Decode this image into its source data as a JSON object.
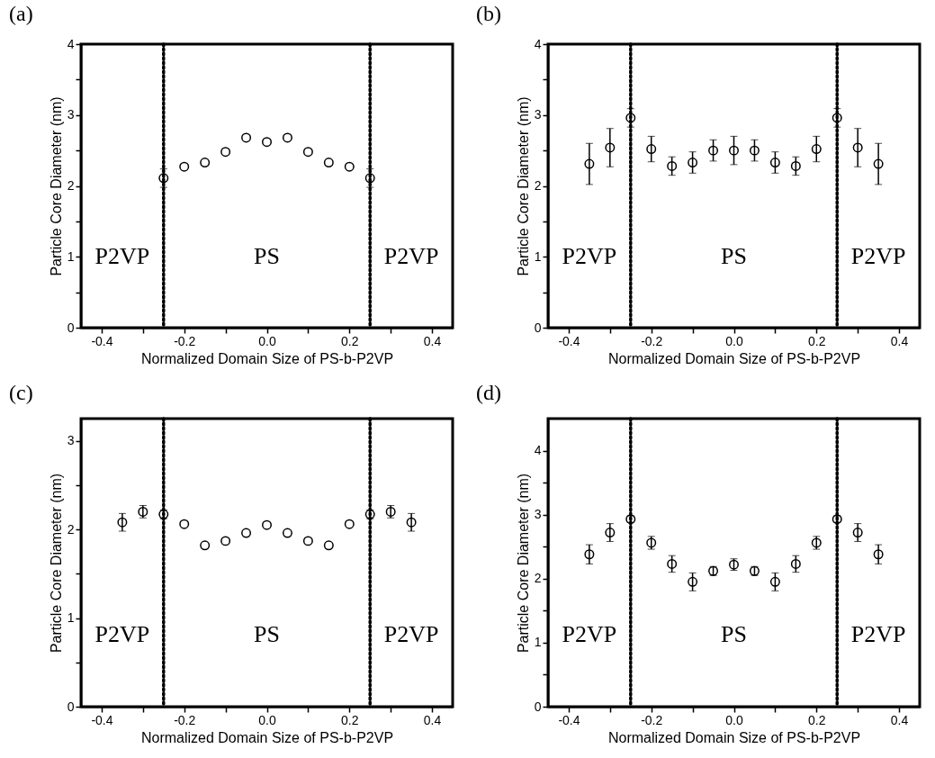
{
  "chart_data": [
    {
      "type": "scatter",
      "title": "(a)",
      "xlabel": "Normalized Domain Size of PS-b-P2VP",
      "ylabel": "Particle Core Diameter (nm)",
      "marker": "circle",
      "grid": false,
      "x": [
        -0.25,
        -0.2,
        -0.15,
        -0.1,
        -0.05,
        0,
        0.05,
        0.1,
        0.15,
        0.2,
        0.25
      ],
      "series": [
        {
          "color": "#000000",
          "values": [
            2.11,
            2.27,
            2.33,
            2.48,
            2.68,
            2.62,
            2.68,
            2.48,
            2.33,
            2.27,
            2.11
          ],
          "errors": [
            0.13,
            null,
            null,
            null,
            null,
            null,
            null,
            null,
            null,
            null,
            0.13
          ]
        }
      ],
      "xlim": [
        -0.45,
        0.45
      ],
      "xticks": [
        -0.4,
        {
          "value": -0.3,
          "label": null
        },
        -0.2,
        {
          "value": -0.1,
          "label": null
        },
        {
          "value": 0,
          "label": "0.0"
        },
        {
          "value": 0.1,
          "label": null
        },
        0.2,
        {
          "value": 0.3,
          "label": null
        },
        0.4
      ],
      "ylim": [
        0,
        4
      ],
      "yticks": [
        0,
        {
          "value": 0.5,
          "label": null
        },
        1,
        {
          "value": 1.5,
          "label": null
        },
        2,
        {
          "value": 2.5,
          "label": null
        },
        3,
        {
          "value": 3.5,
          "label": null
        },
        4
      ],
      "ref_lines": [
        {
          "axis": "x",
          "value": -0.25,
          "line_style": "dotted"
        },
        {
          "axis": "x",
          "value": 0.25,
          "line_style": "dotted"
        }
      ],
      "annotations": [
        "P2VP",
        "PS",
        "P2VP"
      ]
    },
    {
      "type": "scatter",
      "title": "(b)",
      "xlabel": "Normalized Domain Size of PS-b-P2VP",
      "ylabel": "Particle Core Diameter (nm)",
      "marker": "circle",
      "grid": false,
      "x": [
        -0.35,
        -0.3,
        -0.25,
        -0.2,
        -0.15,
        -0.1,
        -0.05,
        0,
        0.05,
        0.1,
        0.15,
        0.2,
        0.25,
        0.3,
        0.35
      ],
      "series": [
        {
          "color": "#000000",
          "values": [
            2.31,
            2.54,
            2.96,
            2.52,
            2.28,
            2.33,
            2.5,
            2.5,
            2.5,
            2.33,
            2.28,
            2.52,
            2.96,
            2.54,
            2.31
          ],
          "errors": [
            0.29,
            0.27,
            0.13,
            0.18,
            0.13,
            0.15,
            0.15,
            0.2,
            0.15,
            0.15,
            0.13,
            0.18,
            0.13,
            0.27,
            0.29
          ]
        }
      ],
      "xlim": [
        -0.45,
        0.45
      ],
      "xticks": [
        -0.4,
        {
          "value": -0.3,
          "label": null
        },
        -0.2,
        {
          "value": -0.1,
          "label": null
        },
        {
          "value": 0,
          "label": "0.0"
        },
        {
          "value": 0.1,
          "label": null
        },
        0.2,
        {
          "value": 0.3,
          "label": null
        },
        0.4
      ],
      "ylim": [
        0,
        4
      ],
      "yticks": [
        0,
        {
          "value": 0.5,
          "label": null
        },
        1,
        {
          "value": 1.5,
          "label": null
        },
        2,
        {
          "value": 2.5,
          "label": null
        },
        3,
        {
          "value": 3.5,
          "label": null
        },
        4
      ],
      "ref_lines": [
        {
          "axis": "x",
          "value": -0.25,
          "line_style": "dotted"
        },
        {
          "axis": "x",
          "value": 0.25,
          "line_style": "dotted"
        }
      ],
      "annotations": [
        "P2VP",
        "PS",
        "P2VP"
      ]
    },
    {
      "type": "scatter",
      "title": "(c)",
      "xlabel": "Normalized Domain Size of PS-b-P2VP",
      "ylabel": "Particle Core Diameter (nm)",
      "marker": "circle",
      "grid": false,
      "x": [
        -0.35,
        -0.3,
        -0.25,
        -0.2,
        -0.15,
        -0.1,
        -0.05,
        0,
        0.05,
        0.1,
        0.15,
        0.2,
        0.25,
        0.3,
        0.35
      ],
      "series": [
        {
          "color": "#000000",
          "values": [
            2.08,
            2.2,
            2.17,
            2.06,
            1.82,
            1.87,
            1.96,
            2.05,
            1.96,
            1.87,
            1.82,
            2.06,
            2.17,
            2.2,
            2.08
          ],
          "errors": [
            0.1,
            0.07,
            0.05,
            null,
            null,
            null,
            null,
            null,
            null,
            null,
            null,
            null,
            0.05,
            0.07,
            0.1
          ]
        }
      ],
      "xlim": [
        -0.45,
        0.45
      ],
      "xticks": [
        -0.4,
        {
          "value": -0.3,
          "label": null
        },
        -0.2,
        {
          "value": -0.1,
          "label": null
        },
        {
          "value": 0,
          "label": "0.0"
        },
        {
          "value": 0.1,
          "label": null
        },
        0.2,
        {
          "value": 0.3,
          "label": null
        },
        0.4
      ],
      "ylim": [
        0,
        3.25
      ],
      "yticks": [
        0,
        {
          "value": 0.5,
          "label": null
        },
        1,
        {
          "value": 1.5,
          "label": null
        },
        2,
        {
          "value": 2.5,
          "label": null
        },
        3
      ],
      "ref_lines": [
        {
          "axis": "x",
          "value": -0.25,
          "line_style": "dotted"
        },
        {
          "axis": "x",
          "value": 0.25,
          "line_style": "dotted"
        }
      ],
      "annotations": [
        "P2VP",
        "PS",
        "P2VP"
      ]
    },
    {
      "type": "scatter",
      "title": "(d)",
      "xlabel": "Normalized Domain Size of PS-b-P2VP",
      "ylabel": "Particle Core Diameter (nm)",
      "marker": "circle",
      "grid": false,
      "x": [
        -0.35,
        -0.3,
        -0.25,
        -0.2,
        -0.15,
        -0.1,
        -0.05,
        0,
        0.05,
        0.1,
        0.15,
        0.2,
        0.25,
        0.3,
        0.35
      ],
      "series": [
        {
          "color": "#000000",
          "values": [
            2.38,
            2.72,
            2.93,
            2.56,
            2.23,
            1.95,
            2.12,
            2.22,
            2.12,
            1.95,
            2.23,
            2.56,
            2.93,
            2.72,
            2.38
          ],
          "errors": [
            0.15,
            0.14,
            0.05,
            0.1,
            0.13,
            0.14,
            0.07,
            0.09,
            0.07,
            0.14,
            0.13,
            0.1,
            0.05,
            0.14,
            0.15
          ]
        }
      ],
      "xlim": [
        -0.45,
        0.45
      ],
      "xticks": [
        -0.4,
        {
          "value": -0.3,
          "label": null
        },
        -0.2,
        {
          "value": -0.1,
          "label": null
        },
        {
          "value": 0,
          "label": "0.0"
        },
        {
          "value": 0.1,
          "label": null
        },
        0.2,
        {
          "value": 0.3,
          "label": null
        },
        0.4
      ],
      "ylim": [
        0,
        4.5
      ],
      "yticks": [
        0,
        {
          "value": 0.5,
          "label": null
        },
        1,
        {
          "value": 1.5,
          "label": null
        },
        2,
        {
          "value": 2.5,
          "label": null
        },
        3,
        {
          "value": 3.5,
          "label": null
        },
        4
      ],
      "ref_lines": [
        {
          "axis": "x",
          "value": -0.25,
          "line_style": "dotted"
        },
        {
          "axis": "x",
          "value": 0.25,
          "line_style": "dotted"
        }
      ],
      "annotations": [
        "P2VP",
        "PS",
        "P2VP"
      ]
    }
  ]
}
